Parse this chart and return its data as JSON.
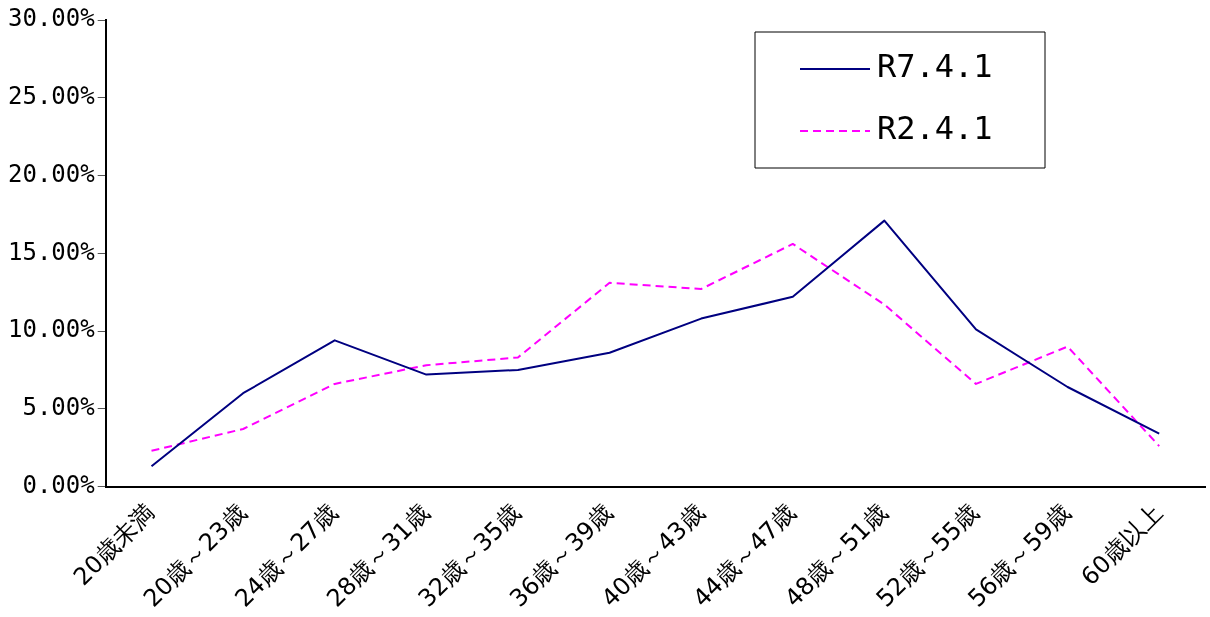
{
  "chart_data": {
    "type": "line",
    "categories": [
      "20歳未満",
      "20歳～23歳",
      "24歳～27歳",
      "28歳～31歳",
      "32歳～35歳",
      "36歳～39歳",
      "40歳～43歳",
      "44歳～47歳",
      "48歳～51歳",
      "52歳～55歳",
      "56歳～59歳",
      "60歳以上"
    ],
    "series": [
      {
        "name": "R7.4.1",
        "color": "#000080",
        "line_style": "solid",
        "values": [
          1.3,
          6.0,
          9.4,
          7.2,
          7.5,
          8.6,
          10.8,
          12.2,
          17.1,
          10.1,
          6.4,
          3.4
        ]
      },
      {
        "name": "R2.4.1",
        "color": "#ff00ff",
        "line_style": "dashed",
        "values": [
          2.3,
          3.7,
          6.6,
          7.8,
          8.3,
          13.1,
          12.7,
          15.6,
          11.7,
          6.6,
          9.0,
          2.6
        ]
      }
    ],
    "ylim": [
      0,
      30
    ],
    "yticks": [
      {
        "value": 0,
        "label": "0.00%"
      },
      {
        "value": 5,
        "label": "5.00%"
      },
      {
        "value": 10,
        "label": "10.00%"
      },
      {
        "value": 15,
        "label": "15.00%"
      },
      {
        "value": 20,
        "label": "20.00%"
      },
      {
        "value": 25,
        "label": "25.00%"
      },
      {
        "value": 30,
        "label": "30.00%"
      }
    ],
    "legend": "top right",
    "marker": "none",
    "grid": false
  }
}
